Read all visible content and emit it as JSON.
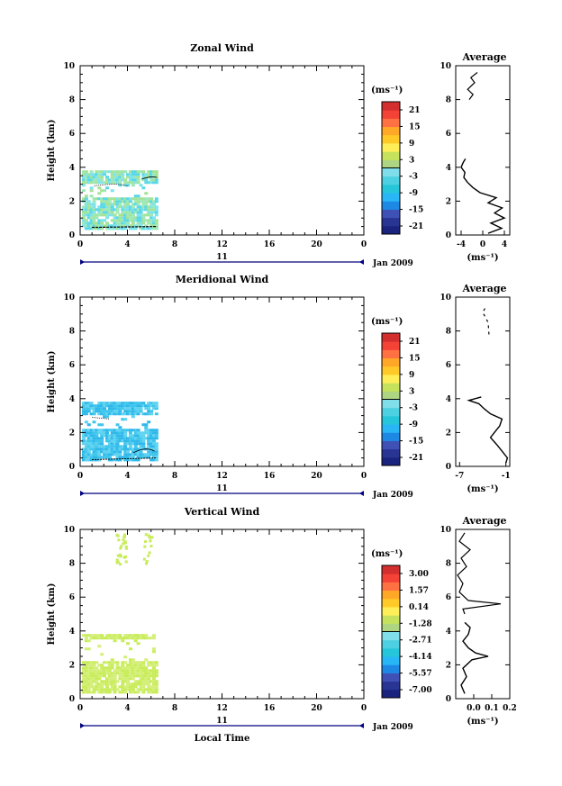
{
  "chart_data": [
    {
      "type": "heatmap",
      "title": "Zonal Wind",
      "ylabel": "Height (km)",
      "xlabel": "",
      "x_ticks": [
        "0",
        "4",
        "8",
        "12",
        "16",
        "20",
        "0"
      ],
      "y_ticks": [
        "0",
        "2",
        "4",
        "6",
        "8",
        "10"
      ],
      "xlim": [
        0,
        24
      ],
      "ylim": [
        0,
        10
      ],
      "date_axis": {
        "day": "11",
        "month_year": "Jan 2009"
      },
      "colorbar": {
        "unit": "(ms⁻¹)",
        "ticks": [
          "21",
          "15",
          "9",
          "3",
          "-3",
          "-9",
          "-15",
          "-21"
        ],
        "range": [
          -24,
          24
        ]
      },
      "data_coverage": {
        "time_range": [
          0,
          6.5
        ],
        "height_range": [
          0.3,
          3.8
        ]
      },
      "average": {
        "title": "Average",
        "xlabel": "(ms⁻¹)",
        "x_ticks": [
          "-4",
          "0",
          "4"
        ],
        "y_ticks": [
          "0",
          "2",
          "4",
          "6",
          "8",
          "10"
        ],
        "xlim": [
          -5,
          5
        ],
        "ylim": [
          0,
          10
        ],
        "profile_heights": [
          0.1,
          0.4,
          0.7,
          1.0,
          1.3,
          1.6,
          1.9,
          2.2,
          2.5,
          2.8,
          3.1,
          3.4,
          3.7,
          4.0,
          4.3,
          4.5
        ],
        "profile_values": [
          1.0,
          3.5,
          1.5,
          4.0,
          2.2,
          3.6,
          1.0,
          2.5,
          -0.5,
          -1.8,
          -2.8,
          -3.5,
          -3.3,
          -4.0,
          -3.6,
          -3.2
        ],
        "upper_heights": [
          8.0,
          8.3,
          8.6,
          9.0,
          9.3,
          9.6
        ],
        "upper_values": [
          -2.5,
          -1.8,
          -2.8,
          -1.5,
          -2.2,
          -1.0
        ]
      }
    },
    {
      "type": "heatmap",
      "title": "Meridional Wind",
      "ylabel": "Height (km)",
      "xlabel": "",
      "x_ticks": [
        "0",
        "4",
        "8",
        "12",
        "16",
        "20",
        "0"
      ],
      "y_ticks": [
        "0",
        "2",
        "4",
        "6",
        "8",
        "10"
      ],
      "xlim": [
        0,
        24
      ],
      "ylim": [
        0,
        10
      ],
      "date_axis": {
        "day": "11",
        "month_year": "Jan 2009"
      },
      "colorbar": {
        "unit": "(ms⁻¹)",
        "ticks": [
          "21",
          "15",
          "9",
          "3",
          "-3",
          "-9",
          "-15",
          "-21"
        ],
        "range": [
          -24,
          24
        ]
      },
      "data_coverage": {
        "time_range": [
          0,
          6.5
        ],
        "height_range": [
          0.3,
          3.8
        ]
      },
      "average": {
        "title": "Average",
        "xlabel": "(ms⁻¹)",
        "x_ticks": [
          "-7",
          "-1"
        ],
        "y_ticks": [
          "0",
          "2",
          "4",
          "6",
          "8",
          "10"
        ],
        "xlim": [
          -7.5,
          -0.5
        ],
        "ylim": [
          0,
          10
        ],
        "profile_heights": [
          0.2,
          0.5,
          0.9,
          1.3,
          1.7,
          2.0,
          2.4,
          2.8,
          3.1,
          3.4,
          3.7,
          3.9,
          4.1
        ],
        "profile_values": [
          -1.0,
          -0.8,
          -1.5,
          -2.2,
          -3.0,
          -2.5,
          -1.8,
          -1.5,
          -3.0,
          -3.8,
          -4.5,
          -5.8,
          -4.2
        ],
        "upper_heights": [
          7.8,
          8.5,
          9.1,
          9.5
        ],
        "upper_values": [
          -3.2,
          -3.3,
          -4.0,
          -3.5
        ]
      }
    },
    {
      "type": "heatmap",
      "title": "Vertical Wind",
      "ylabel": "Height (km)",
      "xlabel": "Local Time",
      "x_ticks": [
        "0",
        "4",
        "8",
        "12",
        "16",
        "20",
        "0"
      ],
      "y_ticks": [
        "0",
        "2",
        "4",
        "6",
        "8",
        "10"
      ],
      "xlim": [
        0,
        24
      ],
      "ylim": [
        0,
        10
      ],
      "date_axis": {
        "day": "11",
        "month_year": "Jan 2009"
      },
      "colorbar": {
        "unit": "(ms⁻¹)",
        "ticks": [
          "3.00",
          "1.57",
          "0.14",
          "-1.28",
          "-2.71",
          "-4.14",
          "-5.57",
          "-7.00"
        ],
        "range": [
          -7.7,
          3.7
        ]
      },
      "data_coverage": {
        "time_range": [
          0,
          6.5
        ],
        "height_range": [
          0.3,
          3.8
        ],
        "sparse_upper": [
          8.0,
          9.8
        ]
      },
      "average": {
        "title": "Average",
        "xlabel": "(ms⁻¹)",
        "x_ticks": [
          "0.0",
          "0.1",
          "0.2"
        ],
        "y_ticks": [
          "0",
          "2",
          "4",
          "6",
          "8",
          "10"
        ],
        "xlim": [
          -0.1,
          0.2
        ],
        "ylim": [
          0,
          10
        ],
        "profile_heights": [
          0.3,
          0.8,
          1.3,
          1.8,
          2.3,
          2.5,
          2.7,
          3.0,
          3.4,
          3.8,
          4.2,
          4.5
        ],
        "profile_values": [
          -0.05,
          -0.07,
          -0.04,
          -0.06,
          -0.01,
          0.08,
          0.01,
          -0.03,
          -0.06,
          -0.03,
          -0.02,
          -0.05
        ],
        "upper_heights": [
          5.0,
          5.3,
          5.6,
          5.8,
          6.3,
          6.8,
          7.3,
          7.8,
          8.3,
          8.8,
          9.3,
          9.8
        ],
        "upper_values": [
          -0.05,
          -0.06,
          0.15,
          -0.03,
          -0.08,
          -0.06,
          -0.09,
          -0.04,
          -0.07,
          -0.02,
          -0.08,
          -0.05
        ]
      }
    }
  ],
  "colors": {
    "scale": [
      "#1a237e",
      "#283593",
      "#3f51b5",
      "#1e88e5",
      "#29b6f6",
      "#26c6da",
      "#4dd0e1",
      "#80deea",
      "#aed581",
      "#c6e25c",
      "#ffee58",
      "#ffca28",
      "#ffa726",
      "#ff7043",
      "#f44336",
      "#d32f2f"
    ],
    "zonal_fill": [
      "#5ad8e6",
      "#7de3ee",
      "#9ee8b8",
      "#a5e394"
    ],
    "meridional_fill": [
      "#3fc6ec",
      "#5fd3f0",
      "#2fb8ea"
    ],
    "vertical_fill": [
      "#c8ec5a",
      "#d4ef78"
    ],
    "date_axis": "#000080"
  }
}
